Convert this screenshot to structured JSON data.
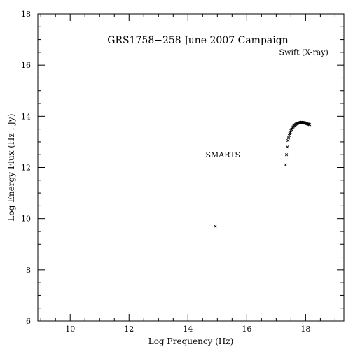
{
  "chart_data": {
    "type": "scatter",
    "title": "GRS1758−258 June 2007 Campaign",
    "xlabel": "Log Frequency (Hz)",
    "ylabel": "Log Energy Flux (Hz . Jy)",
    "xlim": [
      8.9,
      19.3
    ],
    "ylim": [
      6,
      18
    ],
    "xticks": [
      10,
      12,
      14,
      16,
      18
    ],
    "yticks": [
      6,
      8,
      10,
      12,
      14,
      16,
      18
    ],
    "grid": false,
    "marker_color": "#000000",
    "annotations": [
      {
        "text": "SMARTS",
        "x": 14.6,
        "y": 12.4
      },
      {
        "text": "Swift (X-ray)",
        "x": 17.1,
        "y": 16.4
      }
    ],
    "series": [
      {
        "x": [
          14.93,
          17.32,
          17.35,
          17.38,
          17.4,
          17.42,
          17.44,
          17.46,
          17.48,
          17.5,
          17.52,
          17.54,
          17.56,
          17.58,
          17.6,
          17.62,
          17.64,
          17.66,
          17.68,
          17.7,
          17.72,
          17.74,
          17.76,
          17.78,
          17.8,
          17.82,
          17.84,
          17.86,
          17.88,
          17.9,
          17.92,
          17.94,
          17.96,
          17.98,
          18.0,
          18.02,
          18.04,
          18.06,
          18.08,
          18.1,
          18.12,
          18.14
        ],
        "y": [
          9.7,
          12.1,
          12.5,
          12.8,
          13.05,
          13.15,
          13.25,
          13.32,
          13.38,
          13.44,
          13.48,
          13.52,
          13.56,
          13.59,
          13.62,
          13.64,
          13.66,
          13.68,
          13.7,
          13.71,
          13.72,
          13.73,
          13.74,
          13.75,
          13.75,
          13.76,
          13.76,
          13.77,
          13.77,
          13.76,
          13.76,
          13.75,
          13.75,
          13.74,
          13.73,
          13.72,
          13.71,
          13.7,
          13.7,
          13.69,
          13.68,
          13.67
        ]
      }
    ]
  }
}
